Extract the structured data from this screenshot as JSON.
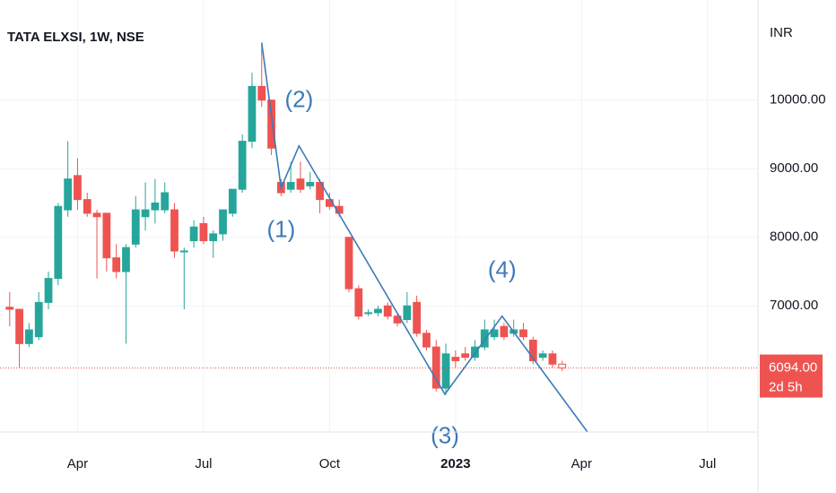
{
  "chart_data": {
    "type": "candlestick",
    "title": "TATA ELXSI, 1W, NSE",
    "y_axis_label": "INR",
    "x": [
      1,
      2,
      3,
      4,
      5,
      6,
      7,
      8,
      9,
      10,
      11,
      12,
      13,
      14,
      15,
      16,
      17,
      18,
      19,
      20,
      21,
      22,
      23,
      24,
      25,
      26,
      27,
      28,
      29,
      30,
      31,
      32,
      33,
      34,
      35,
      36,
      37,
      38,
      39,
      40,
      41,
      42,
      43,
      44,
      45,
      46,
      47,
      48,
      49,
      50,
      51,
      52,
      53,
      54,
      55,
      56,
      57,
      58
    ],
    "open": [
      6980,
      6950,
      6450,
      6550,
      7050,
      7400,
      8400,
      8900,
      8550,
      8350,
      8350,
      7700,
      7500,
      7900,
      8300,
      8400,
      8400,
      8400,
      7800,
      7950,
      8200,
      7950,
      8050,
      8350,
      8700,
      9400,
      10200,
      10000,
      8800,
      8700,
      8850,
      8750,
      8800,
      8550,
      8450,
      8000,
      7250,
      6900,
      6900,
      7000,
      6850,
      6800,
      7050,
      6600,
      6400,
      5800,
      6250,
      6300,
      6250,
      6400,
      6550,
      6700,
      6600,
      6650,
      6500,
      6250,
      6300,
      6150
    ],
    "high": [
      7200,
      6950,
      6750,
      7200,
      7500,
      8500,
      9400,
      9150,
      8650,
      8400,
      8350,
      7900,
      7900,
      8600,
      8800,
      8850,
      8800,
      8500,
      7850,
      8250,
      8300,
      8100,
      8400,
      8700,
      9500,
      10400,
      10800,
      10000,
      8850,
      9100,
      9100,
      8950,
      8850,
      8650,
      8550,
      8000,
      7300,
      6950,
      7000,
      7050,
      6900,
      7200,
      7150,
      6650,
      6500,
      6450,
      6350,
      6400,
      6500,
      6800,
      6800,
      6750,
      6800,
      6750,
      6550,
      6350,
      6350,
      6200
    ],
    "low": [
      6700,
      6100,
      6400,
      6500,
      6950,
      7300,
      8300,
      8400,
      8300,
      7400,
      7500,
      7400,
      6450,
      7850,
      8100,
      8200,
      8350,
      7700,
      6950,
      7850,
      7900,
      7700,
      7950,
      8300,
      8650,
      9300,
      9900,
      9200,
      8600,
      8650,
      8650,
      8700,
      8350,
      8400,
      8300,
      7200,
      6800,
      6850,
      6850,
      6800,
      6700,
      6750,
      6550,
      6350,
      5750,
      5700,
      6100,
      6200,
      6200,
      6350,
      6500,
      6500,
      6550,
      6500,
      6150,
      6200,
      6100,
      6050
    ],
    "close": [
      6950,
      6450,
      6650,
      7050,
      7400,
      8450,
      8850,
      8550,
      8350,
      8300,
      7700,
      7500,
      7850,
      8400,
      8400,
      8500,
      8650,
      7800,
      7800,
      8150,
      7950,
      8050,
      8400,
      8700,
      9400,
      10200,
      10000,
      9300,
      8650,
      8800,
      8700,
      8800,
      8550,
      8450,
      8350,
      7250,
      6850,
      6900,
      6950,
      6850,
      6750,
      7000,
      6600,
      6400,
      5800,
      6300,
      6200,
      6250,
      6400,
      6650,
      6650,
      6550,
      6650,
      6550,
      6200,
      6300,
      6150,
      6094
    ],
    "up_color": "#26a69a",
    "down_color": "#ef5350",
    "wave": {
      "color": "#3d7ab8",
      "x": [
        27,
        29,
        30.85,
        45.9,
        51.8,
        60.6
      ],
      "values": [
        10837,
        8719,
        9333,
        5712,
        6850,
        5163
      ]
    },
    "annotations": [
      "(1)",
      "(2)",
      "(3)",
      "(4)"
    ],
    "last_price": 6094,
    "last_price_label": "6094.00",
    "countdown": "2d 5h",
    "xlim": [
      0,
      78.2
    ],
    "xticks": [
      {
        "value": 8,
        "label": "Apr"
      },
      {
        "value": 21,
        "label": "Jul"
      },
      {
        "value": 34,
        "label": "Oct"
      },
      {
        "value": 47,
        "label": "2023"
      },
      {
        "value": 60,
        "label": "Apr"
      },
      {
        "value": 73,
        "label": "Jul"
      }
    ],
    "ylim": [
      5160,
      11460
    ],
    "yticks": [
      {
        "value": 7000,
        "label": "7000.00"
      },
      {
        "value": 8000,
        "label": "8000.00"
      },
      {
        "value": 9000,
        "label": "9000.00"
      },
      {
        "value": 10000,
        "label": "10000.00"
      }
    ],
    "grid": true
  }
}
